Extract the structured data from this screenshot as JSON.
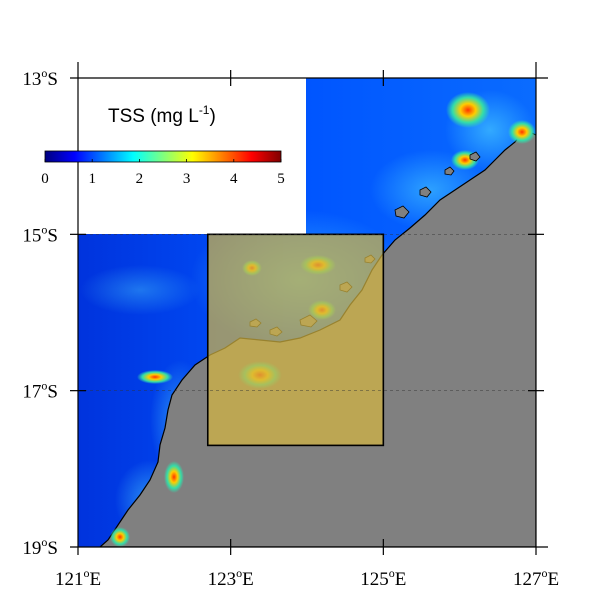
{
  "legend": {
    "title_prefix": "TSS (mg L",
    "title_exponent": "-1",
    "title_suffix": ")",
    "colorbar_ticks": [
      "0",
      "1",
      "2",
      "3",
      "4",
      "5"
    ],
    "colorbar_range": [
      0,
      5
    ],
    "colormap": [
      "#00007f",
      "#0000ff",
      "#007fff",
      "#00ffff",
      "#7fff7f",
      "#ffff00",
      "#ff7f00",
      "#ff0000",
      "#7f0000"
    ]
  },
  "axes": {
    "x_ticks": [
      {
        "value": 121,
        "deg": "121",
        "sup": "o",
        "hemi": "E"
      },
      {
        "value": 123,
        "deg": "123",
        "sup": "o",
        "hemi": "E"
      },
      {
        "value": 125,
        "deg": "125",
        "sup": "o",
        "hemi": "E"
      },
      {
        "value": 127,
        "deg": "127",
        "sup": "o",
        "hemi": "E"
      }
    ],
    "y_ticks": [
      {
        "value": -13,
        "deg": "13",
        "sup": "o",
        "hemi": "S"
      },
      {
        "value": -15,
        "deg": "15",
        "sup": "o",
        "hemi": "S"
      },
      {
        "value": -17,
        "deg": "17",
        "sup": "o",
        "hemi": "S"
      },
      {
        "value": -19,
        "deg": "19",
        "sup": "o",
        "hemi": "S"
      }
    ],
    "lon_range": [
      121,
      127
    ],
    "lat_range": [
      -19,
      -13
    ]
  },
  "study_box": {
    "lon": [
      122.7,
      125.0
    ],
    "lat": [
      -17.7,
      -15.0
    ]
  },
  "colors": {
    "land": "#808080",
    "ocean_deep": "#0044ee",
    "highlight_box": "#d2b441",
    "coast": "#000000"
  }
}
